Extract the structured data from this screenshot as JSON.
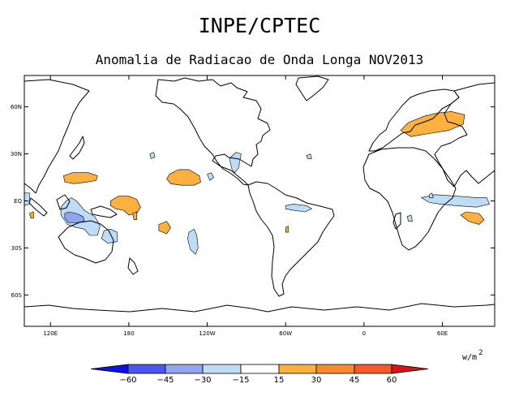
{
  "title": "INPE/CPTEC",
  "subtitle": "Anomalia de Radiacao de Onda Longa NOV2013",
  "units": {
    "base": "w/m",
    "exponent": "2"
  },
  "chart_data": {
    "type": "map-contour",
    "variable": "Outgoing Longwave Radiation anomaly",
    "period": "NOV2013",
    "lon_range": [
      100,
      460
    ],
    "lat_range": [
      -80,
      80
    ],
    "x_ticks": [
      {
        "lon": 120,
        "label": "120E"
      },
      {
        "lon": 180,
        "label": "180"
      },
      {
        "lon": 240,
        "label": "120W"
      },
      {
        "lon": 300,
        "label": "60W"
      },
      {
        "lon": 360,
        "label": "0"
      },
      {
        "lon": 420,
        "label": "60E"
      }
    ],
    "y_ticks": [
      {
        "lat": 60,
        "label": "60N"
      },
      {
        "lat": 30,
        "label": "30N"
      },
      {
        "lat": 0,
        "label": "EQ"
      },
      {
        "lat": -30,
        "label": "30S"
      },
      {
        "lat": -60,
        "label": "60S"
      }
    ],
    "colorbar": {
      "levels": [
        -60,
        -45,
        -30,
        -15,
        15,
        30,
        45,
        60
      ],
      "labels": [
        "−60",
        "−45",
        "−30",
        "−15",
        "15",
        "30",
        "45",
        "60"
      ],
      "colors": [
        "#1010e6",
        "#4a58f2",
        "#8fa6ee",
        "#bfdcf7",
        "#ffffff",
        "#fbb040",
        "#f88a30",
        "#f55a2a",
        "#d61515"
      ]
    },
    "anomaly_regions": [
      {
        "name": "west-pacific-north-positive",
        "value_range": "15 to 30",
        "color": "#fbb040",
        "outline": [
          [
            130,
            16
          ],
          [
            137,
            18
          ],
          [
            149,
            18
          ],
          [
            156,
            16
          ],
          [
            155,
            13
          ],
          [
            148,
            12
          ],
          [
            138,
            11
          ],
          [
            131,
            12
          ]
        ]
      },
      {
        "name": "central-pacific-north-positive",
        "value_range": "15 to 30",
        "color": "#fbb040",
        "outline": [
          [
            211,
            17
          ],
          [
            218,
            20
          ],
          [
            226,
            20
          ],
          [
            234,
            16
          ],
          [
            235,
            12
          ],
          [
            230,
            10
          ],
          [
            220,
            10
          ],
          [
            212,
            11
          ],
          [
            209,
            14
          ]
        ]
      },
      {
        "name": "west-pacific-south-positive",
        "value_range": "15 to 30",
        "color": "#fbb040",
        "outline": [
          [
            166,
            0
          ],
          [
            172,
            3
          ],
          [
            180,
            3
          ],
          [
            186,
            1
          ],
          [
            189,
            -4
          ],
          [
            186,
            -8
          ],
          [
            180,
            -9
          ],
          [
            176,
            -6
          ],
          [
            170,
            -5
          ],
          [
            166,
            -3
          ]
        ]
      },
      {
        "name": "fiji-positive",
        "value_range": "15 to 30",
        "color": "#fbb040",
        "outline": [
          [
            183,
            -8
          ],
          [
            186,
            -7
          ],
          [
            186,
            -12
          ],
          [
            184,
            -12
          ]
        ]
      },
      {
        "name": "indian-ocean-positive",
        "value_range": "15 to 30",
        "color": "#fbb040",
        "outline": [
          [
            104,
            -8
          ],
          [
            107,
            -7
          ],
          [
            107,
            -11
          ],
          [
            105,
            -11
          ]
        ]
      },
      {
        "name": "south-pacific-positive",
        "value_range": "15 to 30",
        "color": "#fbb040",
        "outline": [
          [
            203,
            -15
          ],
          [
            209,
            -13
          ],
          [
            212,
            -17
          ],
          [
            209,
            -21
          ],
          [
            203,
            -19
          ]
        ]
      },
      {
        "name": "south-america-positive",
        "value_range": "15 to 30",
        "color": "#fbb040",
        "outline": [
          [
            300,
            -17
          ],
          [
            302,
            -16
          ],
          [
            302,
            -20
          ],
          [
            300,
            -20
          ]
        ]
      },
      {
        "name": "central-asia-positive",
        "value_range": "15 to 30",
        "color": "#fbb040",
        "outline": [
          [
            388,
            45
          ],
          [
            394,
            50
          ],
          [
            406,
            54
          ],
          [
            416,
            56
          ],
          [
            427,
            57
          ],
          [
            437,
            55
          ],
          [
            436,
            49
          ],
          [
            425,
            45
          ],
          [
            410,
            43
          ],
          [
            396,
            41
          ]
        ]
      },
      {
        "name": "south-indian-positive",
        "value_range": "15 to 30",
        "color": "#fbb040",
        "outline": [
          [
            434,
            -9
          ],
          [
            438,
            -7
          ],
          [
            448,
            -8
          ],
          [
            452,
            -12
          ],
          [
            448,
            -15
          ],
          [
            440,
            -13
          ]
        ]
      },
      {
        "name": "maritime-continent-negative",
        "value_range": "-15 to -30",
        "color": "#bfdcf7",
        "outline": [
          [
            136,
            2
          ],
          [
            140,
            0
          ],
          [
            146,
            -6
          ],
          [
            154,
            -10
          ],
          [
            158,
            -16
          ],
          [
            156,
            -22
          ],
          [
            150,
            -22
          ],
          [
            146,
            -18
          ],
          [
            140,
            -17
          ],
          [
            133,
            -15
          ],
          [
            128,
            -9
          ],
          [
            128,
            -4
          ],
          [
            132,
            0
          ]
        ]
      },
      {
        "name": "maritime-continent-core-negative",
        "value_range": "-30 to -45",
        "color": "#8fa6ee",
        "outline": [
          [
            131,
            -8
          ],
          [
            134,
            -7
          ],
          [
            140,
            -8
          ],
          [
            145,
            -10
          ],
          [
            146,
            -13
          ],
          [
            140,
            -14
          ],
          [
            134,
            -14
          ],
          [
            131,
            -11
          ]
        ]
      },
      {
        "name": "coral-sea-negative",
        "value_range": "-15 to -30",
        "color": "#bfdcf7",
        "outline": [
          [
            161,
            -19
          ],
          [
            166,
            -18
          ],
          [
            171,
            -20
          ],
          [
            171,
            -26
          ],
          [
            164,
            -27
          ],
          [
            159,
            -24
          ]
        ]
      },
      {
        "name": "east-pacific-south-negative",
        "value_range": "-15 to -30",
        "color": "#bfdcf7",
        "outline": [
          [
            226,
            -20
          ],
          [
            230,
            -18
          ],
          [
            232,
            -22
          ],
          [
            233,
            -30
          ],
          [
            231,
            -34
          ],
          [
            227,
            -31
          ],
          [
            225,
            -24
          ]
        ]
      },
      {
        "name": "central-america-negative",
        "value_range": "-15 to -30",
        "color": "#bfdcf7",
        "outline": [
          [
            257,
            27
          ],
          [
            262,
            31
          ],
          [
            266,
            30
          ],
          [
            264,
            21
          ],
          [
            261,
            18
          ],
          [
            259,
            20
          ]
        ]
      },
      {
        "name": "gulf-of-mexico-negative",
        "value_range": "-15 to -30",
        "color": "#bfdcf7",
        "outline": [
          [
            240,
            17
          ],
          [
            243,
            18
          ],
          [
            245,
            15
          ],
          [
            242,
            13
          ]
        ]
      },
      {
        "name": "brazil-negative",
        "value_range": "-15 to -30",
        "color": "#bfdcf7",
        "outline": [
          [
            300,
            -3
          ],
          [
            306,
            -2
          ],
          [
            316,
            -3
          ],
          [
            320,
            -5
          ],
          [
            315,
            -7
          ],
          [
            306,
            -6
          ],
          [
            300,
            -5
          ]
        ]
      },
      {
        "name": "subtropical-north-pacific-negative",
        "value_range": "-15 to -30",
        "color": "#bfdcf7",
        "outline": [
          [
            196,
            30
          ],
          [
            199,
            31
          ],
          [
            200,
            28
          ],
          [
            197,
            27
          ]
        ]
      },
      {
        "name": "north-atlantic-negative",
        "value_range": "-15 to -30",
        "color": "#bfdcf7",
        "outline": [
          [
            316,
            29
          ],
          [
            319,
            30
          ],
          [
            320,
            27
          ],
          [
            317,
            27
          ]
        ]
      },
      {
        "name": "indian-ocean-south-negative",
        "value_range": "-15 to -30",
        "color": "#bfdcf7",
        "outline": [
          [
            404,
            2
          ],
          [
            414,
            4
          ],
          [
            432,
            3
          ],
          [
            446,
            2
          ],
          [
            454,
            2
          ],
          [
            456,
            -2
          ],
          [
            446,
            -4
          ],
          [
            430,
            -3
          ],
          [
            418,
            -2
          ],
          [
            410,
            -1
          ]
        ]
      },
      {
        "name": "east-africa-negative",
        "value_range": "-15 to -30",
        "color": "#bfdcf7",
        "outline": [
          [
            410,
            4
          ],
          [
            412,
            5
          ],
          [
            413,
            2
          ],
          [
            410,
            2
          ]
        ]
      },
      {
        "name": "madagascar-negative",
        "value_range": "-15 to -30",
        "color": "#bfdcf7",
        "outline": [
          [
            393,
            -10
          ],
          [
            396,
            -9
          ],
          [
            397,
            -13
          ],
          [
            394,
            -13
          ]
        ]
      },
      {
        "name": "sumatra-negative",
        "value_range": "-15 to -30",
        "color": "#bfdcf7",
        "outline": [
          [
            100,
            5
          ],
          [
            104,
            5
          ],
          [
            104,
            -2
          ],
          [
            100,
            -3
          ]
        ]
      }
    ]
  }
}
